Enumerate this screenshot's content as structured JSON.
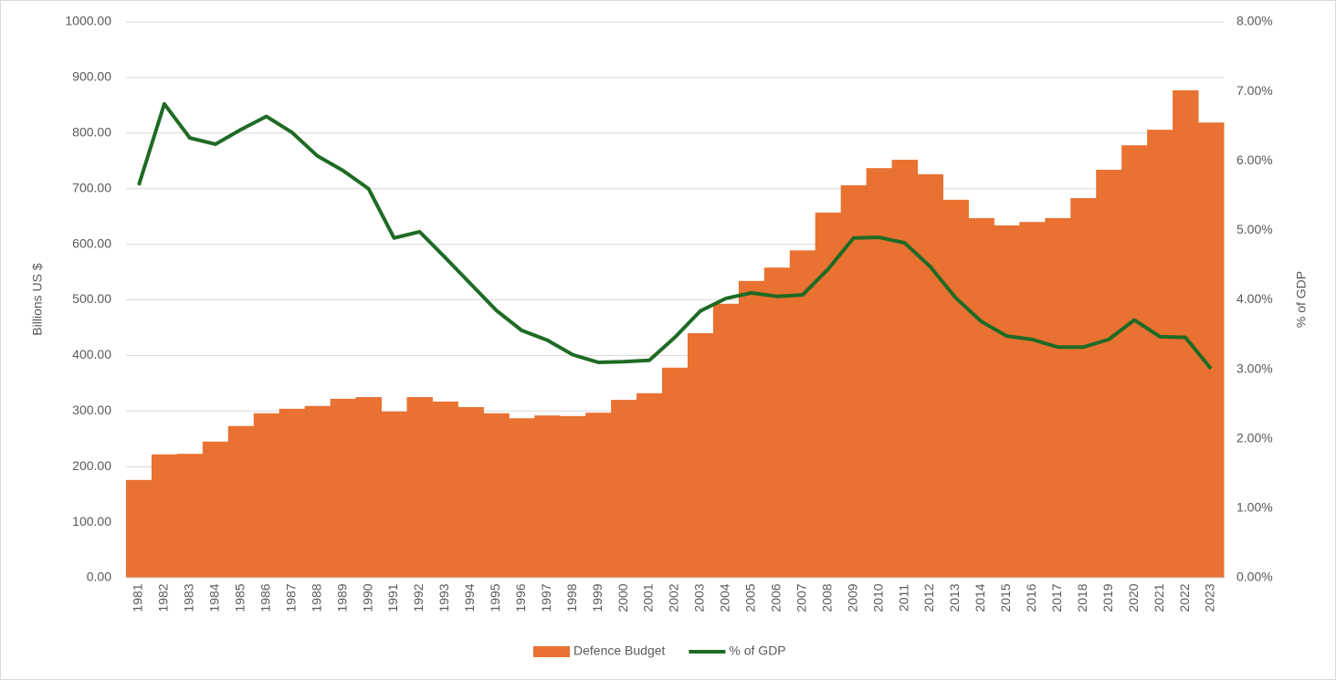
{
  "chart_data": {
    "type": "combo",
    "categories": [
      "1981",
      "1982",
      "1983",
      "1984",
      "1985",
      "1986",
      "1987",
      "1988",
      "1989",
      "1990",
      "1991",
      "1992",
      "1993",
      "1994",
      "1995",
      "1996",
      "1997",
      "1998",
      "1999",
      "2000",
      "2001",
      "2002",
      "2003",
      "2004",
      "2005",
      "2006",
      "2007",
      "2008",
      "2009",
      "2010",
      "2011",
      "2012",
      "2013",
      "2014",
      "2015",
      "2016",
      "2017",
      "2018",
      "2019",
      "2020",
      "2021",
      "2022",
      "2023"
    ],
    "series": [
      {
        "name": "Defence Budget",
        "type": "bar",
        "color": "#e97132",
        "values": [
          176,
          222,
          223,
          245,
          273,
          296,
          304,
          309,
          322,
          325,
          299,
          325,
          317,
          307,
          296,
          287,
          292,
          291,
          297,
          320,
          332,
          378,
          440,
          493,
          534,
          558,
          589,
          657,
          706,
          737,
          752,
          726,
          680,
          647,
          634,
          640,
          647,
          683,
          734,
          778,
          806,
          877,
          819
        ]
      },
      {
        "name": "% of GDP",
        "type": "line",
        "axis": "y2",
        "color": "#1e6b24",
        "values": [
          5.65,
          6.82,
          6.33,
          6.24,
          6.45,
          6.64,
          6.41,
          6.07,
          5.86,
          5.6,
          4.89,
          4.98,
          4.61,
          4.23,
          3.85,
          3.56,
          3.42,
          3.21,
          3.1,
          3.11,
          3.13,
          3.46,
          3.84,
          4.02,
          4.1,
          4.05,
          4.07,
          4.44,
          4.89,
          4.9,
          4.82,
          4.48,
          4.03,
          3.69,
          3.48,
          3.43,
          3.32,
          3.32,
          3.43,
          3.71,
          3.47,
          3.46,
          3.01
        ]
      }
    ],
    "y_label": "Billions US $",
    "y2_label": "% of GDP",
    "ylim": [
      0,
      1000
    ],
    "yticks": [
      {
        "value": 0,
        "label": "0.00"
      },
      {
        "value": 100,
        "label": "100.00"
      },
      {
        "value": 200,
        "label": "200.00"
      },
      {
        "value": 300,
        "label": "300.00"
      },
      {
        "value": 400,
        "label": "400.00"
      },
      {
        "value": 500,
        "label": "500.00"
      },
      {
        "value": 600,
        "label": "600.00"
      },
      {
        "value": 700,
        "label": "700.00"
      },
      {
        "value": 800,
        "label": "800.00"
      },
      {
        "value": 900,
        "label": "900.00"
      },
      {
        "value": 1000,
        "label": "1000.00"
      }
    ],
    "y2lim": [
      0,
      8
    ],
    "y2ticks": [
      {
        "value": 0,
        "label": "0.00%"
      },
      {
        "value": 1,
        "label": "1.00%"
      },
      {
        "value": 2,
        "label": "2.00%"
      },
      {
        "value": 3,
        "label": "3.00%"
      },
      {
        "value": 4,
        "label": "4.00%"
      },
      {
        "value": 5,
        "label": "5.00%"
      },
      {
        "value": 6,
        "label": "6.00%"
      },
      {
        "value": 7,
        "label": "7.00%"
      },
      {
        "value": 8,
        "label": "8.00%"
      }
    ],
    "grid": true,
    "legend": "bottom"
  }
}
